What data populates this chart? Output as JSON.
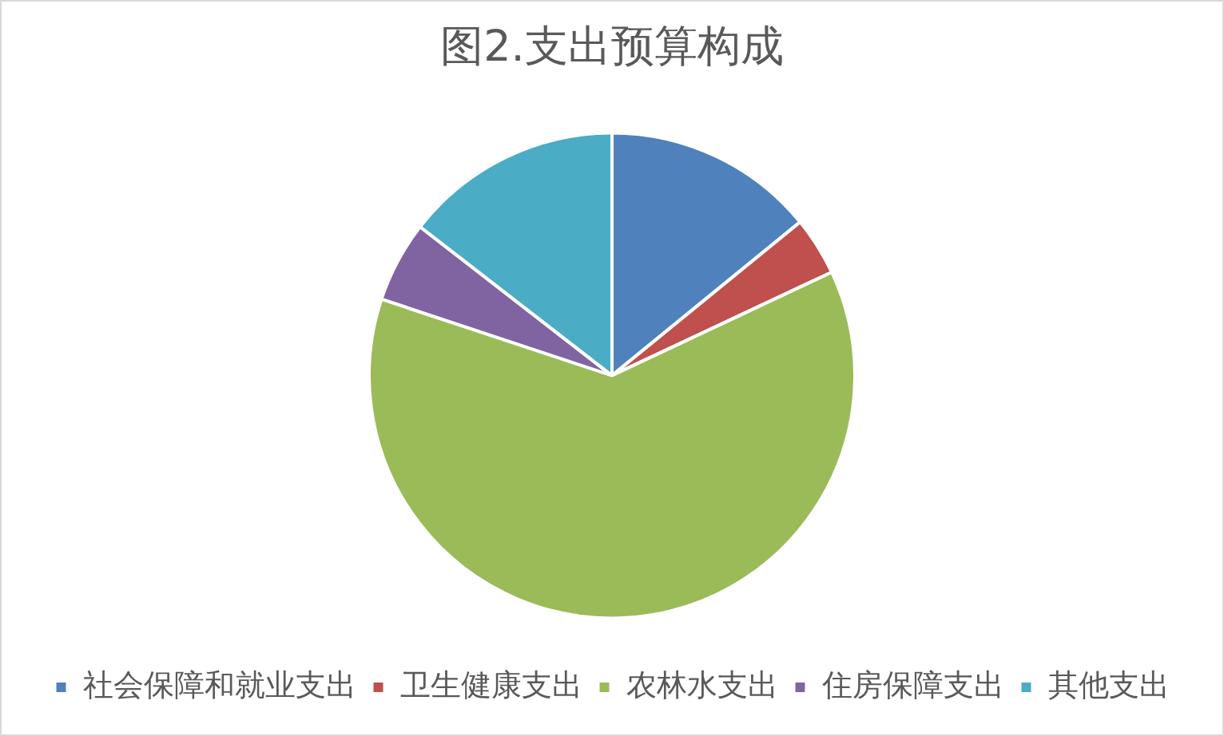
{
  "chart_data": {
    "type": "pie",
    "title": "图2.支出预算构成",
    "categories": [
      "社会保障和就业支出",
      "卫生健康支出",
      "农林水支出",
      "住房保障支出",
      "其他支出"
    ],
    "values": [
      14.1,
      3.9,
      62.1,
      5.4,
      14.5
    ],
    "colors": [
      "#4f81bd",
      "#c0504d",
      "#9bbb59",
      "#8064a2",
      "#4bacc6"
    ],
    "legend": "bottom"
  }
}
